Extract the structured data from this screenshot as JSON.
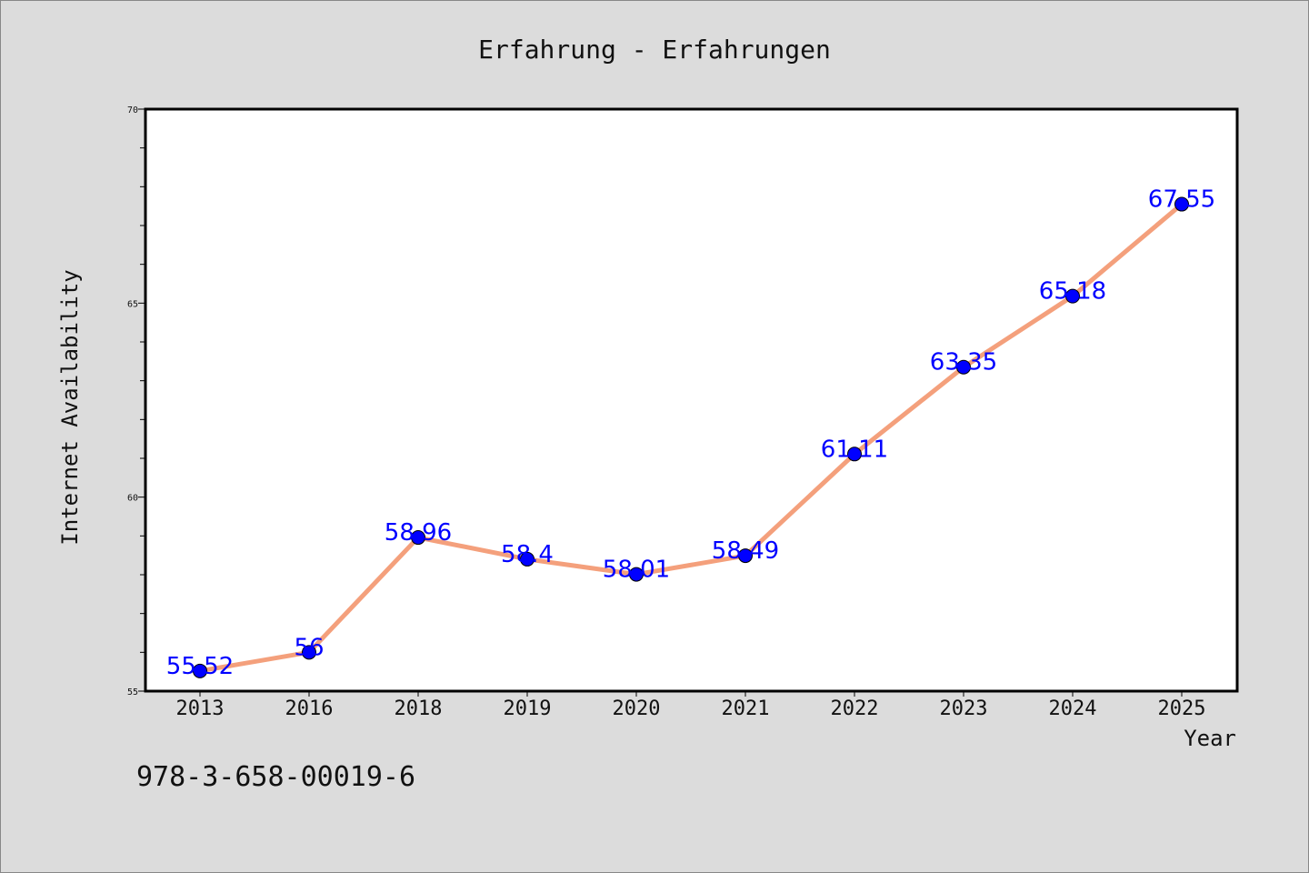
{
  "chart_data": {
    "type": "line",
    "title": "Erfahrung - Erfahrungen",
    "xlabel": "Year",
    "ylabel": "Internet Availability",
    "categories": [
      "2013",
      "2016",
      "2018",
      "2019",
      "2020",
      "2021",
      "2022",
      "2023",
      "2024",
      "2025"
    ],
    "series": [
      {
        "values": [
          55.52,
          56,
          58.96,
          58.4,
          58.01,
          58.49,
          61.11,
          63.35,
          65.18,
          67.55
        ],
        "labels": [
          "55.52",
          "56",
          "58.96",
          "58.4",
          "58.01",
          "58.49",
          "61.11",
          "63.35",
          "65.18",
          "67.55"
        ]
      }
    ],
    "ylim": [
      55,
      70
    ],
    "yticks": [
      "55",
      "60",
      "65",
      "70"
    ],
    "line_color": "#f4a07c",
    "marker_color": "#0000ff",
    "label_color": "#0000ff",
    "grid": false
  },
  "footer_text": "978-3-658-00019-6"
}
